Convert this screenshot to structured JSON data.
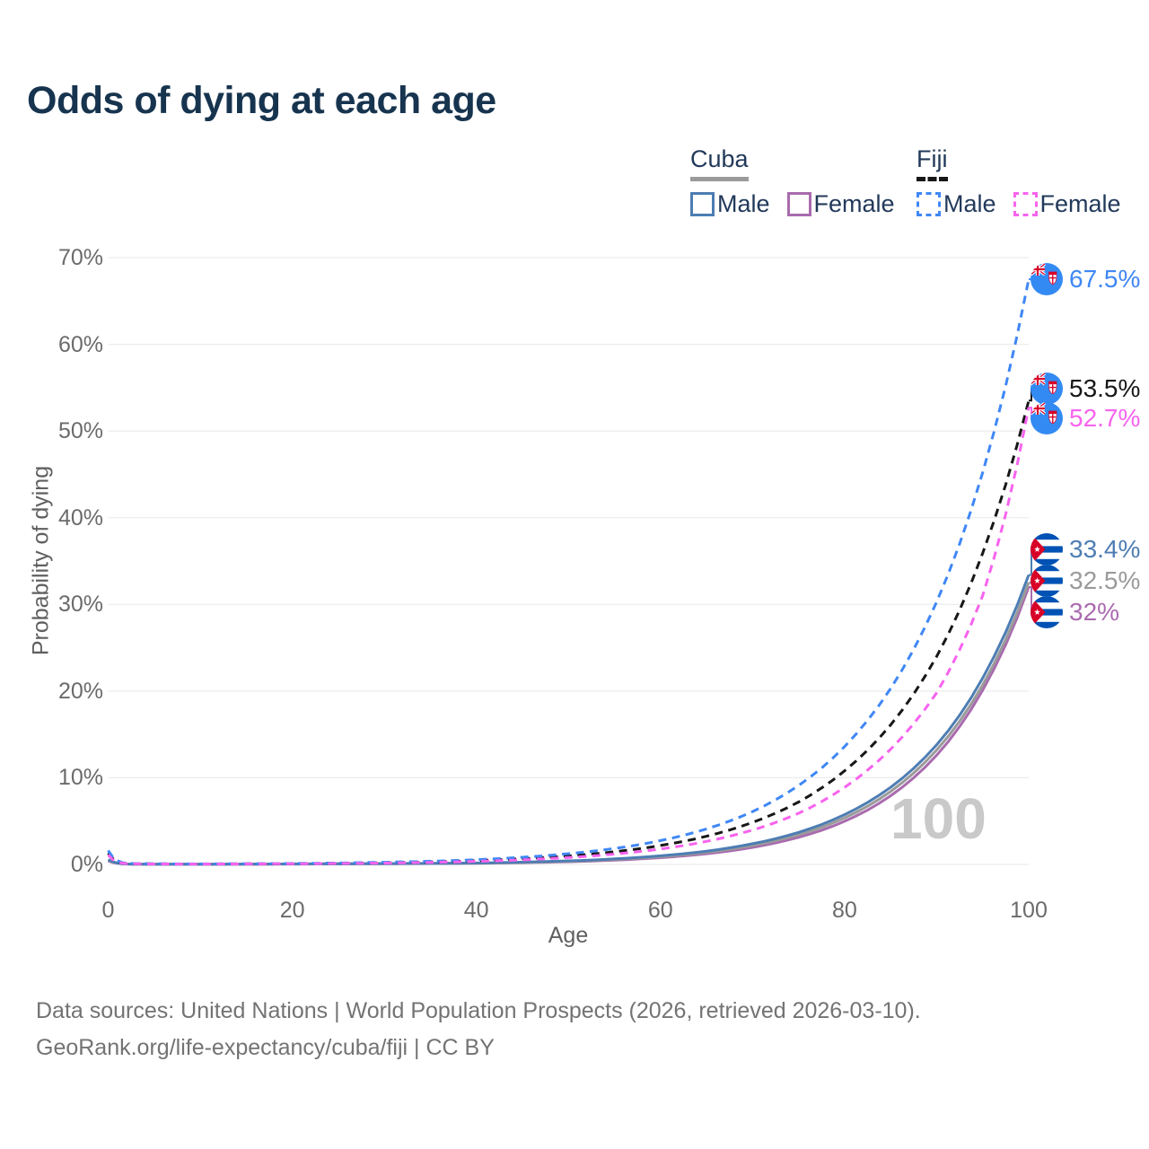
{
  "title": "Odds of dying at each age",
  "legend": {
    "cuba": {
      "label": "Cuba",
      "male": "Male",
      "female": "Female"
    },
    "fiji": {
      "label": "Fiji",
      "male": "Male",
      "female": "Female"
    }
  },
  "axes": {
    "y_label": "Probability of dying",
    "x_label": "Age",
    "yticks": [
      "0%",
      "10%",
      "20%",
      "30%",
      "40%",
      "50%",
      "60%",
      "70%"
    ],
    "xticks": [
      "0",
      "20",
      "40",
      "60",
      "80",
      "100"
    ]
  },
  "watermark": "100",
  "footer": {
    "line1": "Data sources: United Nations | World Population Prospects (2026, retrieved 2026-03-10).",
    "line2": "GeoRank.org/life-expectancy/cuba/fiji | CC BY"
  },
  "colors": {
    "cuba_male": "#4d7db3",
    "cuba_female": "#a96bae",
    "cuba_all": "#9a9a9a",
    "fiji_male": "#3f87f5",
    "fiji_female": "#f763ee",
    "fiji_all": "#171717",
    "title_text": "#17344f",
    "axis_text": "#6b6b6b",
    "gridline": "#ececec",
    "watermark": "#c9c9c9"
  },
  "chart_data": {
    "type": "line",
    "title": "Odds of dying at each age",
    "xlabel": "Age",
    "ylabel": "Probability of dying",
    "xlim": [
      0,
      100
    ],
    "ylim": [
      0,
      70
    ],
    "grid": "horizontal",
    "legend_position": "top-right",
    "x": [
      0,
      2,
      5,
      10,
      15,
      20,
      25,
      30,
      35,
      40,
      45,
      50,
      55,
      60,
      65,
      70,
      75,
      80,
      85,
      90,
      95,
      100
    ],
    "series": [
      {
        "name": "Fiji Male",
        "country": "fiji",
        "style": "dashed",
        "color": "#3f87f5",
        "end_label": "67.5%",
        "end_value": 67.5,
        "label_pct": 67.5,
        "values": [
          1.6,
          0.12,
          0.07,
          0.06,
          0.08,
          0.11,
          0.17,
          0.25,
          0.37,
          0.55,
          0.83,
          1.24,
          1.84,
          2.75,
          4.1,
          6.1,
          9.1,
          13.6,
          20.3,
          30.3,
          45.2,
          67.5
        ]
      },
      {
        "name": "Fiji All",
        "country": "fiji",
        "style": "dashed",
        "color": "#171717",
        "end_label": "53.5%",
        "end_value": 53.5,
        "label_pct": 54.9,
        "values": [
          1.3,
          0.1,
          0.06,
          0.05,
          0.07,
          0.09,
          0.13,
          0.2,
          0.29,
          0.44,
          0.66,
          0.98,
          1.46,
          2.18,
          3.25,
          4.85,
          7.2,
          10.8,
          16.1,
          24.0,
          35.9,
          53.5
        ]
      },
      {
        "name": "Fiji Female",
        "country": "fiji",
        "style": "dashed",
        "color": "#f763ee",
        "end_label": "52.7%",
        "end_value": 52.7,
        "label_pct": 51.5,
        "values": [
          1.1,
          0.08,
          0.05,
          0.04,
          0.06,
          0.08,
          0.11,
          0.16,
          0.24,
          0.36,
          0.53,
          0.8,
          1.19,
          1.78,
          2.66,
          3.97,
          5.9,
          8.9,
          13.3,
          19.8,
          31.0,
          52.7
        ]
      },
      {
        "name": "Cuba Male",
        "country": "cuba",
        "style": "solid",
        "color": "#4d7db3",
        "end_label": "33.4%",
        "end_value": 33.4,
        "label_pct": 36.3,
        "values": [
          0.55,
          0.05,
          0.03,
          0.03,
          0.04,
          0.06,
          0.08,
          0.1,
          0.12,
          0.17,
          0.27,
          0.41,
          0.64,
          0.99,
          1.53,
          2.39,
          3.7,
          5.75,
          8.9,
          13.8,
          21.5,
          33.4
        ]
      },
      {
        "name": "Cuba All",
        "country": "cuba",
        "style": "solid",
        "color": "#9a9a9a",
        "end_label": "32.5%",
        "end_value": 32.5,
        "label_pct": 32.7,
        "values": [
          0.48,
          0.05,
          0.03,
          0.02,
          0.04,
          0.05,
          0.07,
          0.09,
          0.11,
          0.15,
          0.23,
          0.36,
          0.57,
          0.89,
          1.39,
          2.18,
          3.43,
          5.37,
          8.42,
          13.2,
          20.7,
          32.5
        ]
      },
      {
        "name": "Cuba Female",
        "country": "cuba",
        "style": "solid",
        "color": "#a96bae",
        "end_label": "32%",
        "end_value": 32.0,
        "label_pct": 29.1,
        "values": [
          0.4,
          0.04,
          0.02,
          0.02,
          0.03,
          0.04,
          0.06,
          0.08,
          0.1,
          0.13,
          0.2,
          0.31,
          0.49,
          0.78,
          1.23,
          1.97,
          3.13,
          4.98,
          7.92,
          12.6,
          20.1,
          32.0
        ]
      }
    ]
  }
}
